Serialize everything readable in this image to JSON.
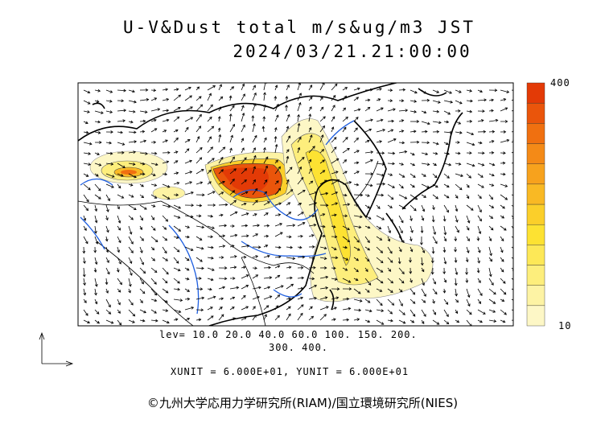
{
  "header": {
    "title": "U-V&Dust total m/s&ug/m3 JST",
    "datetime": "2024/03/21.21:00:00"
  },
  "colorbar": {
    "max_label": "400",
    "min_label": "10",
    "colors": [
      "#fdf7c6",
      "#fdf3a4",
      "#fdee7c",
      "#fde857",
      "#fde232",
      "#fbcf2a",
      "#f9b924",
      "#f7a21d",
      "#f48a17",
      "#f07010",
      "#ea550b",
      "#e33a06"
    ]
  },
  "legend": {
    "levels_line1": "lev= 10.0 20.0 40.0 60.0 100. 150. 200.",
    "levels_line2": "300. 400.",
    "units": "XUNIT = 6.000E+01, YUNIT = 6.000E+01"
  },
  "footer": {
    "copyright": "©九州大学応用力学研究所(RIAM)/国立環境研究所(NIES)"
  },
  "colors": {
    "coast": "#000000",
    "river": "#1f5fe0",
    "dust_low": "#fdf7c6",
    "dust_high": "#e33a06"
  }
}
